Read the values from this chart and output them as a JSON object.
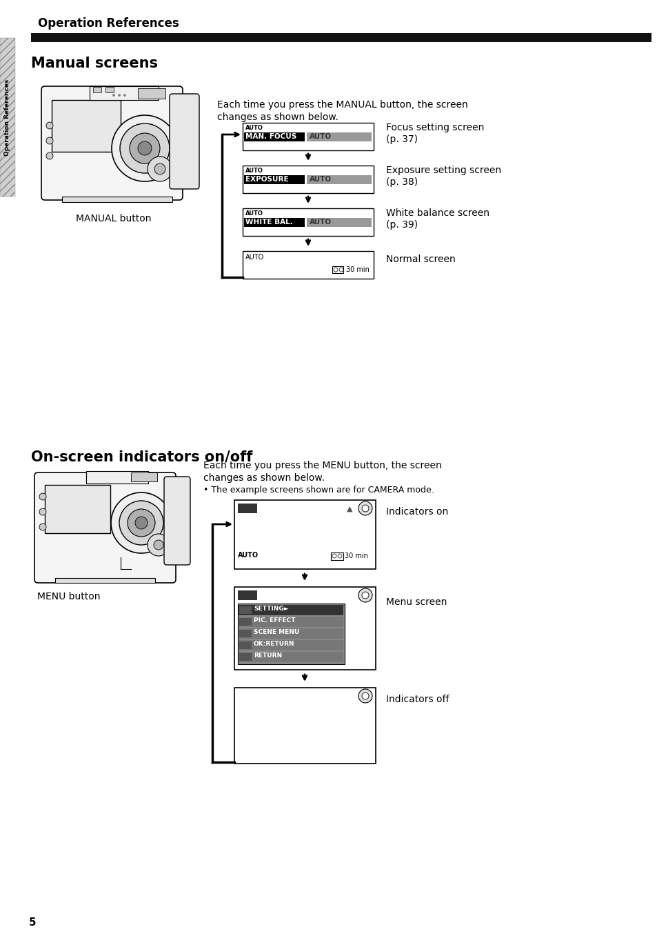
{
  "bg_color": "#ffffff",
  "page_number": "5",
  "sidebar_text": "Operation References",
  "header_title": "Operation References",
  "black_bar_color": "#111111",
  "section1_title": "Manual screens",
  "section1_body1": "Each time you press the MANUAL button, the screen",
  "section1_body2": "changes as shown below.",
  "manual_button_label": "MANUAL button",
  "screen1_top": "AUTO",
  "screen1_main": "MAN. FOCUS",
  "screen1_right": "AUTO",
  "screen1_desc1": "Focus setting screen",
  "screen1_desc2": "(p. 37)",
  "screen2_top": "AUTO",
  "screen2_main": "EXPOSURE",
  "screen2_right": "AUTO",
  "screen2_desc1": "Exposure setting screen",
  "screen2_desc2": "(p. 38)",
  "screen3_top": "AUTO",
  "screen3_main": "WHITE BAL.",
  "screen3_right": "AUTO",
  "screen3_desc1": "White balance screen",
  "screen3_desc2": "(p. 39)",
  "screen4_top": "AUTO",
  "screen4_time": "30 min",
  "screen4_desc": "Normal screen",
  "section2_title": "On-screen indicators on/off",
  "section2_body1": "Each time you press the MENU button, the screen",
  "section2_body2": "changes as shown below.",
  "section2_body3": "• The example screens shown are for CAMERA mode.",
  "menu_button_label": "MENU button",
  "ind_on_desc": "Indicators on",
  "ind_on_top": "AUTO",
  "ind_on_time": "30 min",
  "menu_screen_desc": "Menu screen",
  "menu_screen_items": [
    "SETTING►",
    "PIC. EFFECT",
    "SCENE MENU",
    "OK:RETURN",
    "RETURN"
  ],
  "ind_off_desc": "Indicators off"
}
